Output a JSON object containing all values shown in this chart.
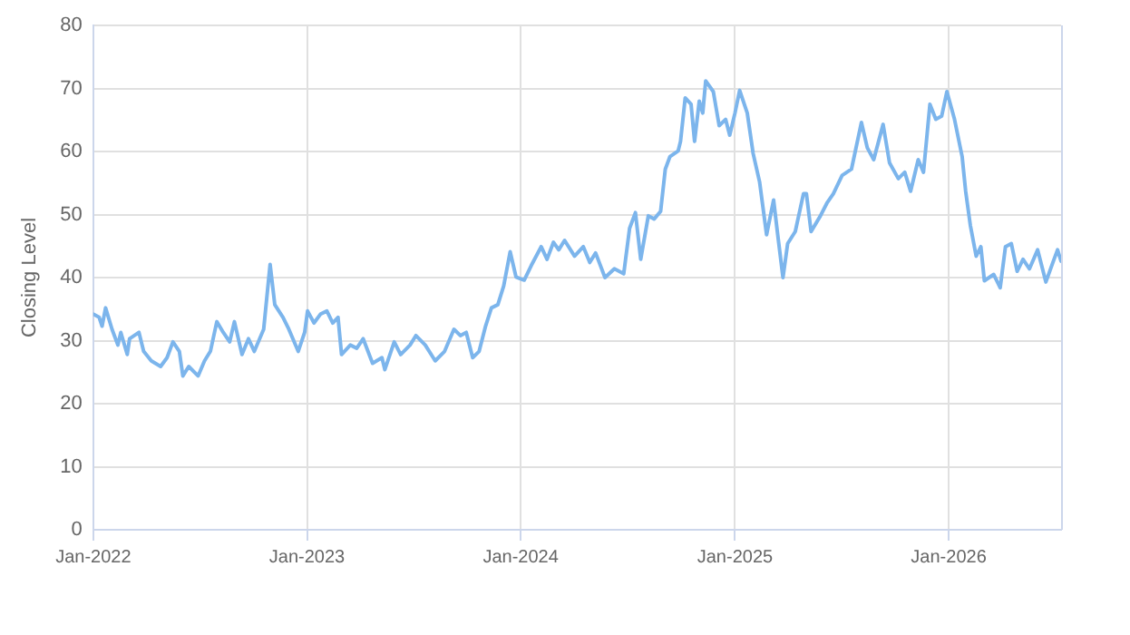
{
  "chart_data": {
    "type": "line",
    "ylabel": "Closing Level",
    "grid": true,
    "legend": false,
    "marker": "none",
    "line_style": "solid",
    "xlim": [
      "2022-01-01",
      "2026-07-12"
    ],
    "ylim": [
      0,
      80
    ],
    "yticks": [
      0,
      10,
      20,
      30,
      40,
      50,
      60,
      70,
      80
    ],
    "xticks": [
      {
        "value": "2022-01-01",
        "label": "Jan-2022"
      },
      {
        "value": "2023-01-01",
        "label": "Jan-2023"
      },
      {
        "value": "2024-01-01",
        "label": "Jan-2024"
      },
      {
        "value": "2025-01-01",
        "label": "Jan-2025"
      },
      {
        "value": "2026-01-01",
        "label": "Jan-2026"
      }
    ],
    "x": [
      "2022-01-01",
      "2022-01-11",
      "2022-01-16",
      "2022-01-22",
      "2022-02-02",
      "2022-02-12",
      "2022-02-17",
      "2022-02-28",
      "2022-03-04",
      "2022-03-20",
      "2022-03-28",
      "2022-04-10",
      "2022-04-26",
      "2022-05-07",
      "2022-05-17",
      "2022-05-28",
      "2022-06-03",
      "2022-06-13",
      "2022-06-29",
      "2022-07-10",
      "2022-07-20",
      "2022-07-31",
      "2022-08-11",
      "2022-08-22",
      "2022-08-30",
      "2022-09-12",
      "2022-09-23",
      "2022-10-03",
      "2022-10-19",
      "2022-10-30",
      "2022-11-07",
      "2022-11-21",
      "2022-12-01",
      "2022-12-17",
      "2022-12-28",
      "2023-01-02",
      "2023-01-13",
      "2023-01-24",
      "2023-02-04",
      "2023-02-14",
      "2023-02-23",
      "2023-03-01",
      "2023-03-16",
      "2023-03-27",
      "2023-04-07",
      "2023-04-23",
      "2023-05-09",
      "2023-05-14",
      "2023-05-30",
      "2023-06-10",
      "2023-06-26",
      "2023-07-06",
      "2023-07-22",
      "2023-08-08",
      "2023-08-24",
      "2023-09-09",
      "2023-09-20",
      "2023-09-30",
      "2023-10-11",
      "2023-10-22",
      "2023-11-02",
      "2023-11-12",
      "2023-11-23",
      "2023-12-03",
      "2023-12-14",
      "2023-12-24",
      "2024-01-07",
      "2024-01-19",
      "2024-02-05",
      "2024-02-15",
      "2024-02-26",
      "2024-03-06",
      "2024-03-16",
      "2024-04-02",
      "2024-04-17",
      "2024-04-28",
      "2024-05-08",
      "2024-05-24",
      "2024-06-09",
      "2024-06-25",
      "2024-07-05",
      "2024-07-15",
      "2024-07-24",
      "2024-08-06",
      "2024-08-16",
      "2024-08-27",
      "2024-09-04",
      "2024-09-12",
      "2024-09-26",
      "2024-09-30",
      "2024-10-08",
      "2024-10-18",
      "2024-10-24",
      "2024-11-01",
      "2024-11-07",
      "2024-11-12",
      "2024-11-25",
      "2024-12-05",
      "2024-12-16",
      "2024-12-23",
      "2025-01-01",
      "2025-01-09",
      "2025-01-22",
      "2025-02-01",
      "2025-02-12",
      "2025-02-24",
      "2025-03-08",
      "2025-03-15",
      "2025-03-24",
      "2025-04-01",
      "2025-04-14",
      "2025-04-28",
      "2025-05-03",
      "2025-05-11",
      "2025-05-27",
      "2025-06-07",
      "2025-06-18",
      "2025-07-03",
      "2025-07-19",
      "2025-08-05",
      "2025-08-15",
      "2025-08-26",
      "2025-09-11",
      "2025-09-22",
      "2025-10-07",
      "2025-10-18",
      "2025-10-28",
      "2025-11-10",
      "2025-11-19",
      "2025-11-30",
      "2025-12-10",
      "2025-12-20",
      "2025-12-29",
      "2026-01-11",
      "2026-01-24",
      "2026-01-30",
      "2026-02-07",
      "2026-02-17",
      "2026-02-25",
      "2026-03-03",
      "2026-03-19",
      "2026-03-30",
      "2026-04-08",
      "2026-04-18",
      "2026-04-28",
      "2026-05-08",
      "2026-05-19",
      "2026-06-02",
      "2026-06-16",
      "2026-06-28",
      "2026-07-06",
      "2026-07-12"
    ],
    "series": [
      {
        "color": "#7cb5ec",
        "values": [
          34.2,
          33.7,
          32.3,
          35.2,
          31.8,
          29.3,
          31.3,
          27.8,
          30.3,
          31.3,
          28.3,
          26.8,
          25.9,
          27.3,
          29.8,
          28.3,
          24.4,
          25.9,
          24.4,
          26.8,
          28.3,
          33.0,
          31.3,
          29.8,
          33.0,
          27.8,
          30.3,
          28.3,
          31.8,
          42.1,
          35.7,
          33.7,
          31.8,
          28.3,
          31.3,
          34.7,
          32.8,
          34.2,
          34.7,
          32.8,
          33.7,
          27.8,
          29.3,
          28.8,
          30.3,
          26.4,
          27.3,
          25.4,
          29.8,
          27.8,
          29.3,
          30.8,
          29.3,
          26.8,
          28.3,
          31.8,
          30.8,
          31.3,
          27.3,
          28.3,
          32.3,
          35.2,
          35.7,
          38.7,
          44.1,
          40.1,
          39.6,
          41.9,
          44.9,
          42.9,
          45.6,
          44.4,
          45.9,
          43.4,
          44.9,
          42.4,
          43.9,
          40.0,
          41.4,
          40.6,
          47.8,
          50.3,
          42.9,
          49.8,
          49.3,
          50.5,
          57.2,
          59.2,
          60.1,
          61.6,
          68.5,
          67.5,
          61.6,
          68.0,
          66.1,
          71.2,
          69.5,
          64.1,
          65.1,
          62.6,
          66.1,
          69.7,
          66.1,
          59.7,
          55.2,
          46.8,
          52.3,
          46.8,
          40.0,
          45.4,
          47.3,
          53.3,
          53.3,
          47.3,
          49.8,
          51.8,
          53.3,
          56.2,
          57.2,
          64.6,
          60.6,
          58.7,
          64.3,
          58.2,
          55.7,
          56.7,
          53.7,
          58.7,
          56.7,
          67.5,
          65.1,
          65.6,
          69.5,
          65.1,
          59.2,
          53.7,
          48.3,
          43.4,
          44.9,
          39.5,
          40.5,
          38.4,
          44.9,
          45.4,
          41.0,
          42.9,
          41.4,
          44.4,
          39.3,
          42.4,
          44.4,
          42.6
        ]
      }
    ]
  }
}
